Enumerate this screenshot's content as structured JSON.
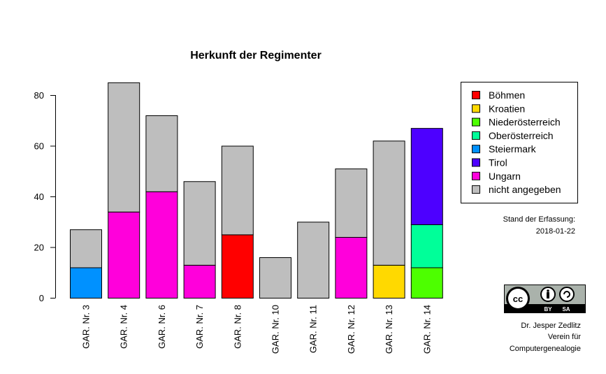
{
  "chart_data": {
    "type": "bar",
    "stacked": true,
    "title": "Herkunft der Regimenter",
    "xlabel": "",
    "ylabel": "",
    "ylim": [
      0,
      85
    ],
    "yticks": [
      0,
      20,
      40,
      60,
      80
    ],
    "categories": [
      "GAR. Nr. 3",
      "GAR. Nr. 4",
      "GAR. Nr. 6",
      "GAR. Nr. 7",
      "GAR. Nr. 8",
      "GAR. Nr. 10",
      "GAR. Nr. 11",
      "GAR. Nr. 12",
      "GAR. Nr. 13",
      "GAR. Nr. 14"
    ],
    "series": [
      {
        "name": "Böhmen",
        "color": "#FF0000",
        "values": [
          0,
          0,
          0,
          0,
          25,
          0,
          0,
          0,
          0,
          0
        ]
      },
      {
        "name": "Kroatien",
        "color": "#FFD900",
        "values": [
          0,
          0,
          0,
          0,
          0,
          0,
          0,
          0,
          13,
          0
        ]
      },
      {
        "name": "Niederösterreich",
        "color": "#4DFF00",
        "values": [
          0,
          0,
          0,
          0,
          0,
          0,
          0,
          0,
          0,
          12
        ]
      },
      {
        "name": "Oberösterreich",
        "color": "#00FF99",
        "values": [
          0,
          0,
          0,
          0,
          0,
          0,
          0,
          0,
          0,
          17
        ]
      },
      {
        "name": "Steiermark",
        "color": "#0091FF",
        "values": [
          12,
          0,
          0,
          0,
          0,
          0,
          0,
          0,
          0,
          0
        ]
      },
      {
        "name": "Tirol",
        "color": "#4D00FF",
        "values": [
          0,
          0,
          0,
          0,
          0,
          0,
          0,
          0,
          0,
          38
        ]
      },
      {
        "name": "Ungarn",
        "color": "#FF00DB",
        "values": [
          0,
          34,
          42,
          13,
          0,
          0,
          0,
          24,
          0,
          0
        ]
      },
      {
        "name": "nicht angegeben",
        "color": "#BEBEBE",
        "values": [
          15,
          51,
          30,
          33,
          35,
          16,
          30,
          27,
          49,
          0
        ]
      }
    ],
    "legend_position": "right",
    "grid": false
  },
  "annotations": {
    "stand_label": "Stand der Erfassung:",
    "stand_date": "2018-01-22",
    "author": "Dr. Jesper Zedlitz",
    "org_line1": "Verein für",
    "org_line2": "Computergenealogie",
    "license_by": "BY",
    "license_sa": "SA",
    "license_cc": "cc"
  }
}
